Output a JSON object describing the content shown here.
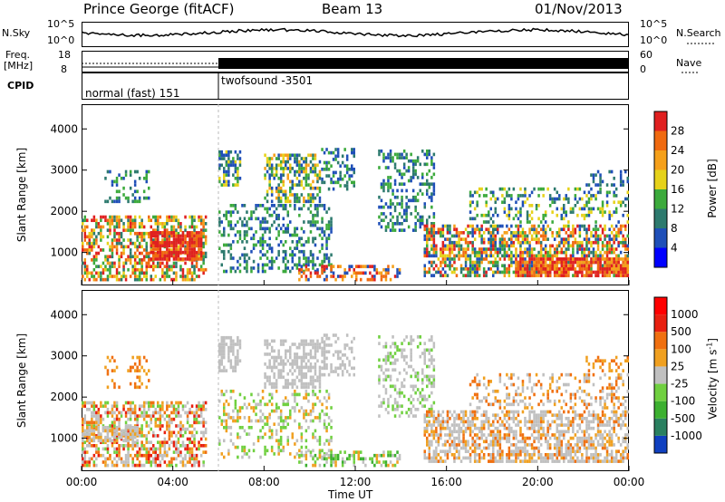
{
  "header": {
    "station": "Prince George (fitACF)",
    "beam": "Beam 13",
    "date": "01/Nov/2013"
  },
  "top_strip": {
    "nsky_label": "N.Sky",
    "nsky_ticks": [
      "10^5",
      "10^0"
    ],
    "nsearch_ticks": [
      "10^5",
      "10^0"
    ],
    "nsearch_label": "N.Search",
    "freq_label": "Freq.",
    "freq_unit": "[MHz]",
    "freq_ticks": [
      "18",
      "8"
    ],
    "nave_ticks": [
      "60",
      "0"
    ],
    "nave_label": "Nave",
    "cpid_label": "CPID",
    "cpid_modes": [
      "normal (fast) 151",
      "twofsound -3501"
    ]
  },
  "chart_data": [
    {
      "type": "heatmap",
      "panel": "power",
      "ylabel": "Slant Range [km]",
      "yticks": [
        1000,
        2000,
        3000,
        4000
      ],
      "ylim": [
        200,
        4600
      ],
      "xlabel": "",
      "xlim": [
        "00:00",
        "24:00"
      ],
      "colorbar": {
        "label": "Power [dB]",
        "ticks": [
          "4",
          "8",
          "12",
          "16",
          "20",
          "24",
          "28"
        ],
        "colors": [
          "#0000ff",
          "#1f4fb8",
          "#2d7a6e",
          "#3caa3c",
          "#e6d21a",
          "#f5a01a",
          "#f06a10",
          "#e02020"
        ]
      }
    },
    {
      "type": "heatmap",
      "panel": "velocity",
      "ylabel": "Slant Range [km]",
      "yticks": [
        1000,
        2000,
        3000,
        4000
      ],
      "ylim": [
        200,
        4600
      ],
      "xlabel": "Time UT",
      "xticks": [
        "00:00",
        "04:00",
        "08:00",
        "12:00",
        "16:00",
        "20:00",
        "00:00"
      ],
      "colorbar": {
        "label": "Velocity [m s-1]",
        "ticks": [
          "1000",
          "500",
          "100",
          "25",
          "-25",
          "-100",
          "-500",
          "-1000"
        ],
        "colors": [
          "#1040c0",
          "#2a8060",
          "#3cb030",
          "#70d040",
          "#c0c0c0",
          "#f0a020",
          "#f07010",
          "#e82010",
          "#ff0000"
        ]
      }
    }
  ]
}
